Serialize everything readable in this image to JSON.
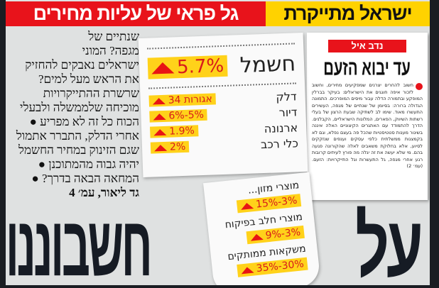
{
  "header": {
    "kicker": "ישראל מתייקרת",
    "headline": "גל פראי של עליות מחירים"
  },
  "lead": {
    "lines": [
      "שנתיים של",
      "מגפה? המוני",
      "ישראלים נאבקים להחזיק",
      "את הראש מעל למים?",
      "שרשרת ההתייקרויות",
      "מוכיחה שלממשלה ולבעלי",
      "הכוח כל זה לא מפריע ●",
      "אחרי הדלק, התברר אתמול",
      "שגם הזינוק במחיר החשמל",
      "יהיה גבוה מהמתוכנן ●",
      "המחאה הבאה בדרך? ●"
    ],
    "byline": "גד ליאור, עמ׳ 4"
  },
  "article": {
    "author": "נדב איל",
    "title": "עד יבוא הזעם",
    "body": "חשוב להחרים יצרנים שמפקיעים מחירים, וחשוב לזכור איפה חוגגים את הישראלים: בעיקר בברלין המופקע ובתמורה הדלה עבור מיסים המופרכים. התמונה הגדולה ברורה: בסיומן של שנתיים של מגפה, העשירים התעשרו מאוד. שימו לב לשתיקה שבעת הרצון של בעלי רשתות השיווק, הפארים, המלונות הישראליים, הקבלנים. הדרך להתמודד עם האתגרים הקיצוניים האלה איננה בשיגור מענות סטטיסטיות שהכל פה בעצם נפלא, וגם לא בקמצנות ממשלתית כלפי עסקים וענפים שנזקקים לסיוע, אלא בחלוקת משאבים לאלה שהקורונה פגעה בהם. מי שלא יעשה את זה יגלה מה פורץ לעיתים קרובות רגע אחרי מגפה, גל התעשרות וגל התייקרויות: הזעם. (עמ׳ 2)"
  },
  "receipt": {
    "main": {
      "label": "חשמל",
      "value": "5.7%"
    },
    "items": [
      {
        "label": "דלק",
        "value": "34 אגורות"
      },
      {
        "label": "דיור",
        "value": "6%-5%"
      },
      {
        "label": "ארנונה",
        "value": "1.9%"
      },
      {
        "label": "כלי רכב",
        "value": "2%"
      }
    ],
    "items2": [
      {
        "label": "מוצרי מזון...",
        "value": "15%-3%"
      },
      {
        "label": "מוצרי חלב בפיקוח",
        "value": "9%-3%"
      },
      {
        "label": "משקאות ממותקים",
        "value": "35%-30%"
      }
    ]
  },
  "main_headline": {
    "word1": "על",
    "word2": "חשבוננו"
  },
  "colors": {
    "red": "#e8131b",
    "yellow": "#ffd200",
    "highlight": "#ffd21a",
    "headline": "#161b24"
  }
}
